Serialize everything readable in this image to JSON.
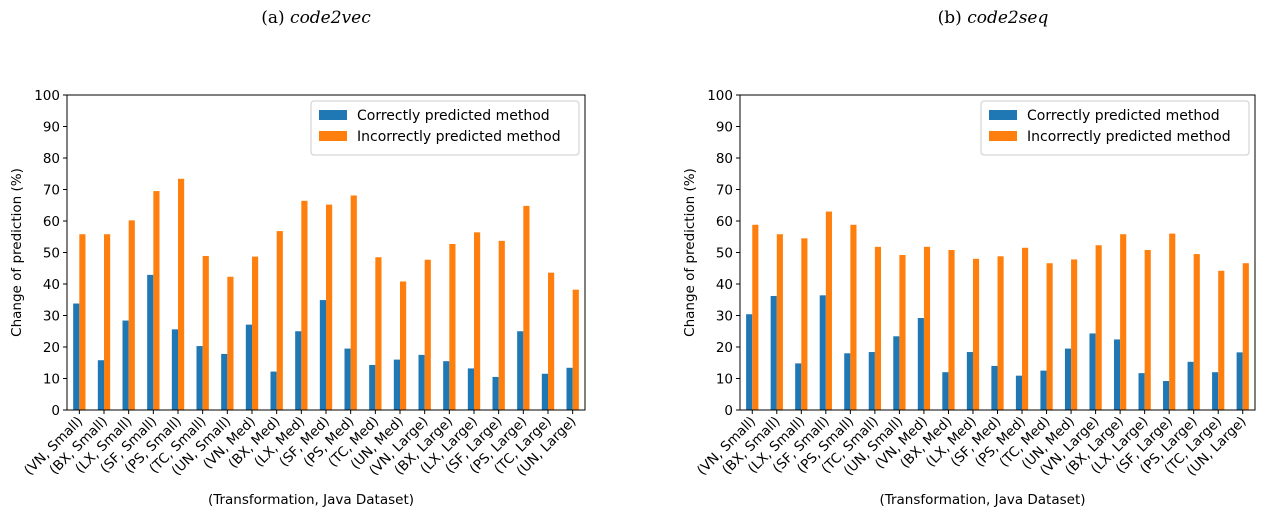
{
  "captions": [
    {
      "label": "(a)",
      "name": "code2vec"
    },
    {
      "label": "(b)",
      "name": "code2seq"
    }
  ],
  "colors": {
    "correct": "#1f77b4",
    "incorrect": "#ff7f0e"
  },
  "chart_data": [
    {
      "type": "bar",
      "title": "(a) code2vec",
      "xlabel": "(Transformation, Java Dataset)",
      "ylabel": "Change of prediction (%)",
      "ylim": [
        0,
        100
      ],
      "yticks": [
        "0",
        "10",
        "20",
        "30",
        "40",
        "50",
        "60",
        "70",
        "80",
        "90",
        "100"
      ],
      "legend_position": "top-right",
      "categories": [
        "(VN, Small)",
        "(BX, Small)",
        "(LX, Small)",
        "(SF, Small)",
        "(PS, Small)",
        "(TC, Small)",
        "(UN, Small)",
        "(VN, Med)",
        "(BX, Med)",
        "(LX, Med)",
        "(SF, Med)",
        "(PS, Med)",
        "(TC, Med)",
        "(UN, Med)",
        "(VN, Large)",
        "(BX, Large)",
        "(LX, Large)",
        "(SF, Large)",
        "(PS, Large)",
        "(TC, Large)",
        "(UN, Large)"
      ],
      "series": [
        {
          "name": "Correctly predicted method",
          "values": [
            33.8,
            15.8,
            28.4,
            42.9,
            25.6,
            20.3,
            17.8,
            27.1,
            12.2,
            25.0,
            34.9,
            19.5,
            14.3,
            16.0,
            17.5,
            15.5,
            13.2,
            10.5,
            25.0,
            11.5,
            13.4
          ]
        },
        {
          "name": "Incorrectly predicted method",
          "values": [
            55.8,
            55.8,
            60.2,
            69.5,
            73.4,
            48.9,
            42.3,
            48.7,
            56.8,
            66.4,
            65.2,
            68.1,
            48.5,
            40.8,
            47.7,
            52.7,
            56.4,
            53.7,
            64.8,
            43.6,
            38.2
          ]
        }
      ]
    },
    {
      "type": "bar",
      "title": "(b) code2seq",
      "xlabel": "(Transformation, Java Dataset)",
      "ylabel": "Change of prediction (%)",
      "ylim": [
        0,
        100
      ],
      "yticks": [
        "0",
        "10",
        "20",
        "30",
        "40",
        "50",
        "60",
        "70",
        "80",
        "90",
        "100"
      ],
      "legend_position": "top-right",
      "categories": [
        "(VN, Small)",
        "(BX, Small)",
        "(LX, Small)",
        "(SF, Small)",
        "(PS, Small)",
        "(TC, Small)",
        "(UN, Small)",
        "(VN, Med)",
        "(BX, Med)",
        "(LX, Med)",
        "(SF, Med)",
        "(PS, Med)",
        "(TC, Med)",
        "(UN, Med)",
        "(VN, Large)",
        "(BX, Large)",
        "(LX, Large)",
        "(SF, Large)",
        "(PS, Large)",
        "(TC, Large)",
        "(UN, Large)"
      ],
      "series": [
        {
          "name": "Correctly predicted method",
          "values": [
            30.4,
            36.2,
            14.8,
            36.4,
            18.0,
            18.4,
            23.4,
            29.2,
            12.0,
            18.4,
            14.0,
            10.9,
            12.5,
            19.5,
            24.3,
            22.4,
            11.7,
            9.2,
            15.3,
            12.0,
            18.3
          ]
        },
        {
          "name": "Incorrectly predicted method",
          "values": [
            58.8,
            55.8,
            54.5,
            63.0,
            58.8,
            51.8,
            49.2,
            51.8,
            50.8,
            48.0,
            48.8,
            51.5,
            46.6,
            47.8,
            52.3,
            55.8,
            50.8,
            56.0,
            49.5,
            44.2,
            46.6
          ]
        }
      ]
    }
  ]
}
